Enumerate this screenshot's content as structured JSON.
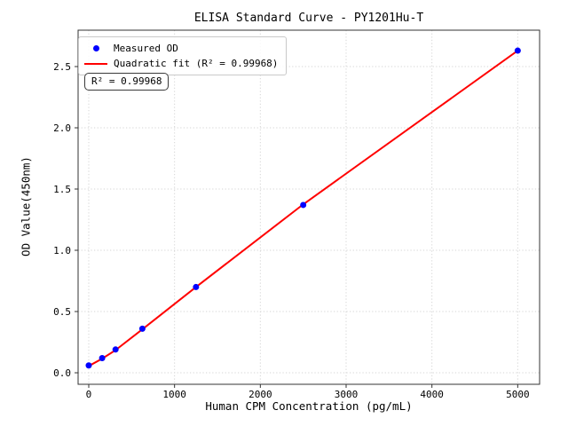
{
  "figure": {
    "title": "ELISA Standard Curve - PY1201Hu-T",
    "xlabel": "Human CPM Concentration (pg/mL)",
    "ylabel": "OD Value(450nm)",
    "annotation": "R² = 0.99968",
    "background": "#ffffff",
    "spine_color": "#333333",
    "grid_color": "#d6d6d6"
  },
  "legend": {
    "position": "upper left",
    "items": [
      {
        "label": "Measured OD",
        "marker": "dot",
        "color": "#0000ff"
      },
      {
        "label": "Quadratic fit (R² = 0.99968)",
        "marker": "line",
        "color": "#ff0000"
      }
    ]
  },
  "chart_data": {
    "type": "scatter",
    "title": "ELISA Standard Curve - PY1201Hu-T",
    "xlabel": "Human CPM Concentration (pg/mL)",
    "ylabel": "OD Value(450nm)",
    "xlim": [
      -124,
      5255
    ],
    "ylim": [
      -0.094,
      2.797
    ],
    "xticks": [
      0,
      1000,
      2000,
      3000,
      4000,
      5000
    ],
    "yticks": [
      0.0,
      0.5,
      1.0,
      1.5,
      2.0,
      2.5
    ],
    "grid": true,
    "grid_style": "dotted",
    "legend_position": "upper left",
    "r_squared": 0.99968,
    "series": [
      {
        "name": "Measured OD",
        "type": "scatter",
        "color": "#0000ff",
        "marker_size": 7,
        "x": [
          0,
          156.2,
          312.5,
          625,
          1250,
          2500,
          5000
        ],
        "y": [
          0.06,
          0.12,
          0.19,
          0.36,
          0.7,
          1.37,
          2.63
        ]
      },
      {
        "name": "Quadratic fit (R² = 0.99968)",
        "type": "line",
        "color": "#ff0000",
        "line_width": 2,
        "x": [
          0,
          156.2,
          312.5,
          625,
          1250,
          2500,
          5000
        ],
        "y": [
          0.055,
          0.115,
          0.185,
          0.355,
          0.7,
          1.375,
          2.63
        ]
      }
    ]
  }
}
